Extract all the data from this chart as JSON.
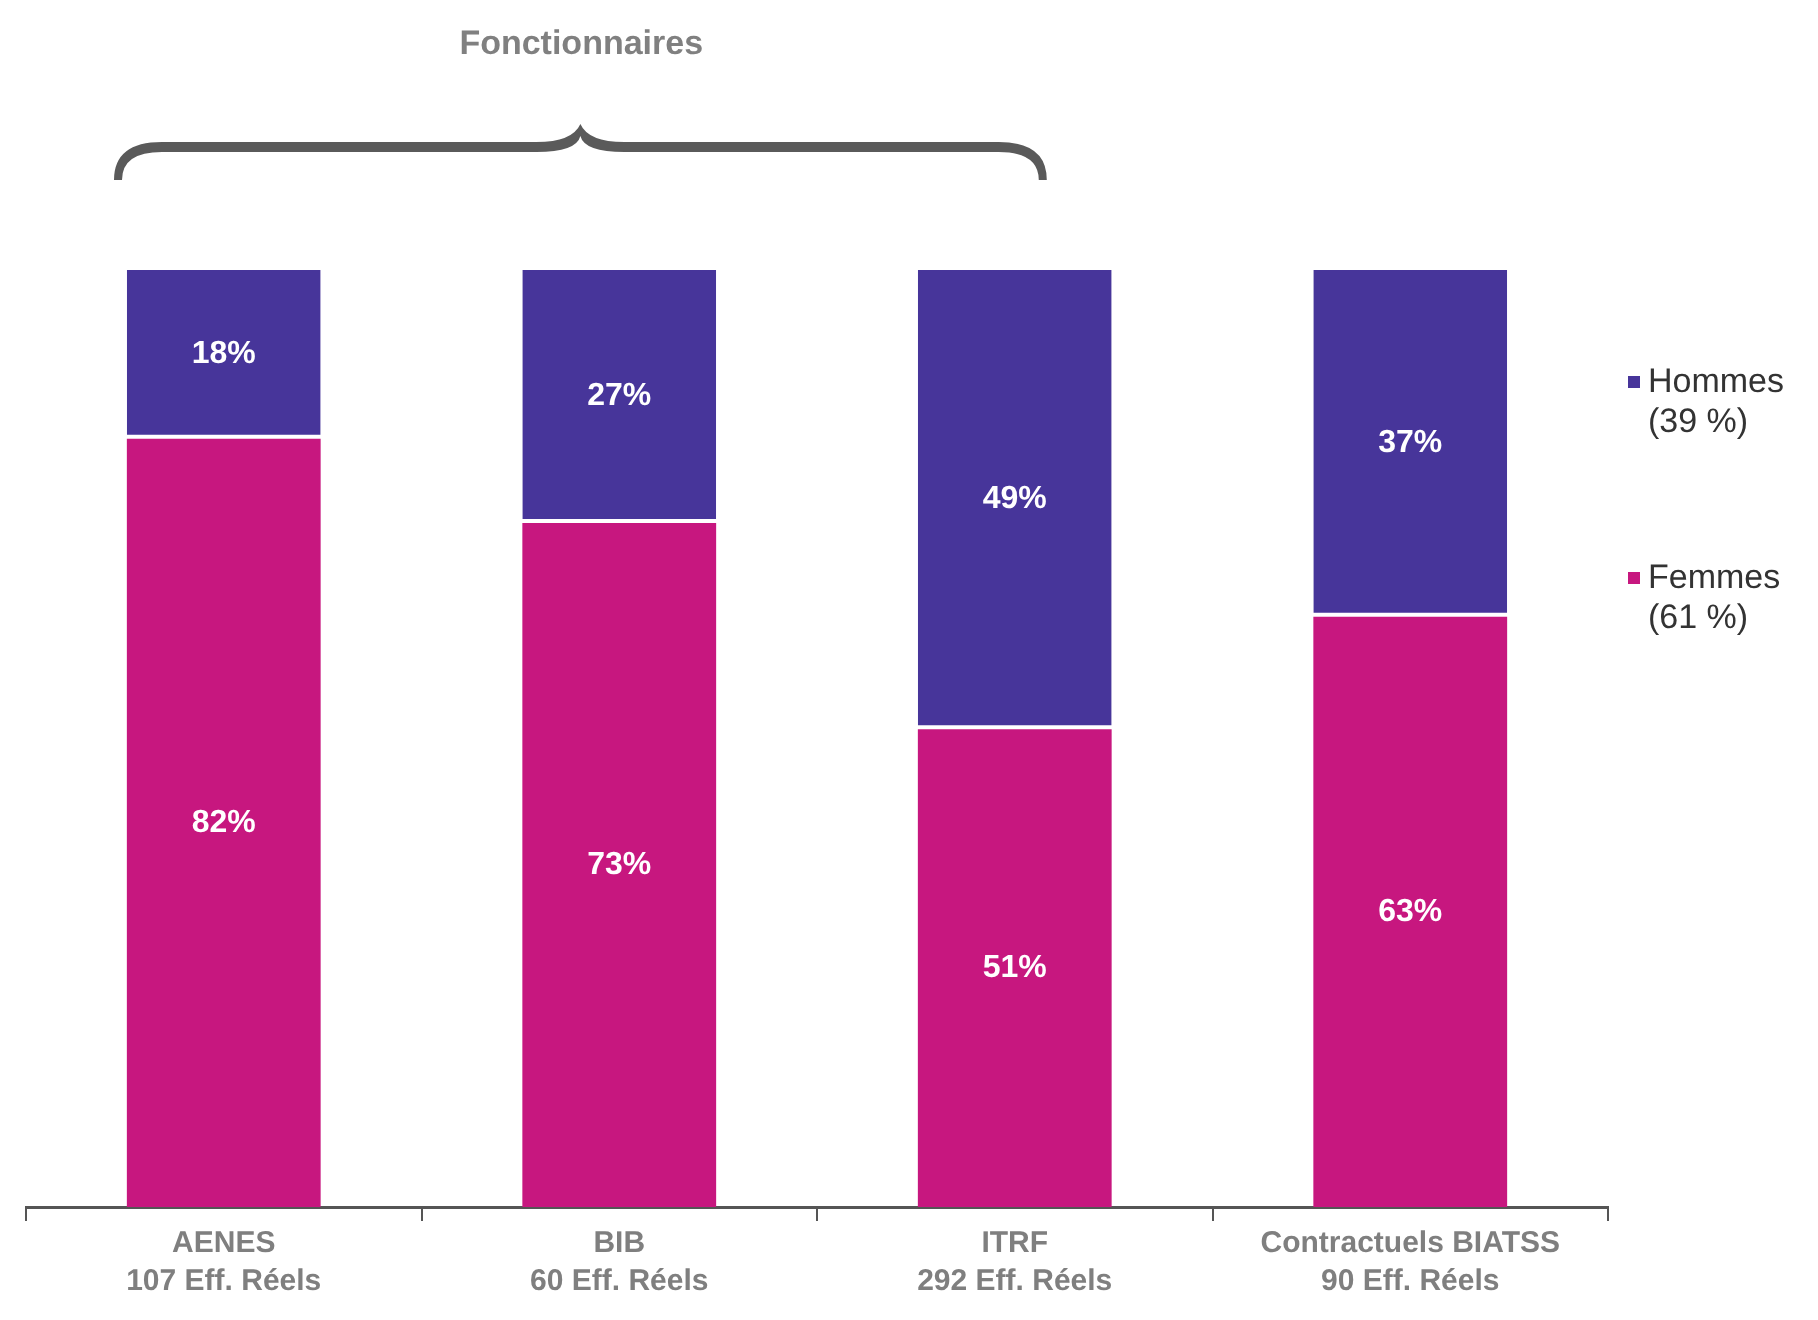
{
  "chart_data": {
    "type": "bar",
    "annotations": [
      "Fonctionnaires"
    ],
    "categories": [
      "AENES\n107 Eff. Réels",
      "BIB\n60 Eff. Réels",
      "ITRF\n292 Eff. Réels",
      "Contractuels BIATSS\n90 Eff. Réels"
    ],
    "series": [
      {
        "name": "Femmes (61 %)",
        "color": "#c7177f",
        "values": [
          82,
          73,
          51,
          63
        ],
        "value_labels": [
          "82%",
          "73%",
          "51%",
          "63%"
        ]
      },
      {
        "name": "Hommes (39 %)",
        "color": "#47359a",
        "values": [
          18,
          27,
          49,
          37
        ],
        "value_labels": [
          "18%",
          "27%",
          "49%",
          "37%"
        ]
      }
    ],
    "stacked": true,
    "ylim": [
      0,
      100
    ],
    "tick_labels": "x",
    "legend": "right"
  }
}
